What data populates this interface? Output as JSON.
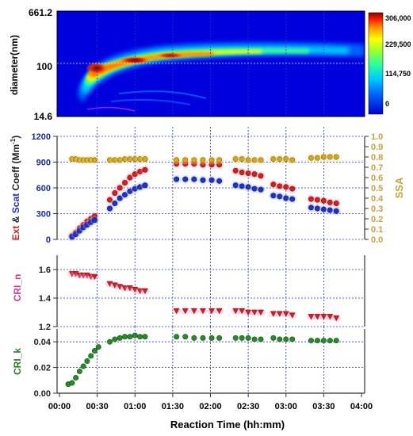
{
  "chart_data": [
    {
      "type": "heatmap",
      "ylabel": "diameter(nm)",
      "y_tick_labels": [
        "661.2",
        "100",
        "14.6"
      ],
      "y_scale": "log",
      "ylim": [
        14.6,
        661.2
      ],
      "colorbar": {
        "tick_labels": [
          "306,000",
          "229,500",
          "114,750",
          "0"
        ],
        "tick_values": [
          306000,
          229500,
          114750,
          0
        ],
        "range": [
          0,
          306000
        ]
      }
    },
    {
      "type": "scatter",
      "ylabel_parts": [
        "Ext",
        " & ",
        "Scat",
        " Coeff (Mm",
        "-1",
        ")"
      ],
      "y2label": "SSA",
      "ylim": [
        0,
        1200
      ],
      "y_ticks": [
        0,
        300,
        600,
        900,
        1200
      ],
      "y2lim": [
        0,
        1.0
      ],
      "y2_tick_labels": [
        "0.0",
        "0.1",
        "0.2",
        "0.3",
        "0.4",
        "0.5",
        "0.6",
        "0.7",
        "0.8",
        "0.9",
        "1.0"
      ],
      "series": [
        {
          "name": "Ext",
          "x": [
            "00:10",
            "00:13",
            "00:16",
            "00:19",
            "00:22",
            "00:25",
            "00:28",
            "00:40",
            "00:44",
            "00:48",
            "00:52",
            "00:56",
            "01:00",
            "01:04",
            "01:08",
            "01:33",
            "01:40",
            "01:47",
            "01:54",
            "02:01",
            "02:07",
            "02:20",
            "02:25",
            "02:30",
            "02:35",
            "02:40",
            "02:50",
            "02:55",
            "03:00",
            "03:05",
            "03:20",
            "03:25",
            "03:30",
            "03:35",
            "03:40"
          ],
          "values": [
            40,
            80,
            130,
            170,
            210,
            240,
            270,
            460,
            540,
            600,
            660,
            720,
            760,
            790,
            810,
            880,
            880,
            880,
            870,
            870,
            870,
            800,
            780,
            770,
            760,
            740,
            640,
            620,
            610,
            590,
            470,
            460,
            450,
            430,
            420
          ]
        },
        {
          "name": "Scat",
          "x": [
            "00:10",
            "00:13",
            "00:16",
            "00:19",
            "00:22",
            "00:25",
            "00:28",
            "00:40",
            "00:44",
            "00:48",
            "00:52",
            "00:56",
            "01:00",
            "01:04",
            "01:08",
            "01:33",
            "01:40",
            "01:47",
            "01:54",
            "02:01",
            "02:07",
            "02:20",
            "02:25",
            "02:30",
            "02:35",
            "02:40",
            "02:50",
            "02:55",
            "03:00",
            "03:05",
            "03:20",
            "03:25",
            "03:30",
            "03:35",
            "03:40"
          ],
          "values": [
            30,
            60,
            100,
            140,
            170,
            200,
            225,
            360,
            420,
            480,
            520,
            560,
            590,
            610,
            630,
            700,
            700,
            700,
            690,
            690,
            680,
            630,
            620,
            610,
            590,
            580,
            510,
            500,
            480,
            470,
            370,
            360,
            350,
            340,
            330
          ]
        },
        {
          "name": "SSA",
          "axis": "right",
          "x": [
            "00:10",
            "00:13",
            "00:16",
            "00:19",
            "00:22",
            "00:25",
            "00:28",
            "00:40",
            "00:44",
            "00:48",
            "00:52",
            "00:56",
            "01:00",
            "01:04",
            "01:08",
            "01:33",
            "01:40",
            "01:47",
            "01:54",
            "02:01",
            "02:07",
            "02:20",
            "02:25",
            "02:30",
            "02:35",
            "02:40",
            "02:50",
            "02:55",
            "03:00",
            "03:05",
            "03:20",
            "03:25",
            "03:30",
            "03:35",
            "03:40"
          ],
          "values": [
            0.78,
            0.78,
            0.77,
            0.77,
            0.77,
            0.77,
            0.77,
            0.77,
            0.77,
            0.77,
            0.78,
            0.78,
            0.78,
            0.78,
            0.78,
            0.77,
            0.77,
            0.77,
            0.77,
            0.77,
            0.77,
            0.78,
            0.78,
            0.77,
            0.77,
            0.77,
            0.78,
            0.78,
            0.78,
            0.77,
            0.79,
            0.79,
            0.8,
            0.8,
            0.8
          ]
        }
      ]
    },
    {
      "type": "scatter",
      "ylabel": "CRI_n",
      "ylim": [
        1.2,
        1.7
      ],
      "y_tick_labels": [
        "1.2",
        "1.4",
        "1.6"
      ],
      "y_ticks": [
        1.2,
        1.4,
        1.6
      ],
      "series": [
        {
          "name": "CRI_n",
          "x": [
            "00:10",
            "00:13",
            "00:16",
            "00:19",
            "00:22",
            "00:25",
            "00:28",
            "00:40",
            "00:44",
            "00:48",
            "00:52",
            "00:56",
            "01:00",
            "01:04",
            "01:08",
            "01:33",
            "01:40",
            "01:47",
            "01:54",
            "02:01",
            "02:07",
            "02:20",
            "02:25",
            "02:30",
            "02:35",
            "02:40",
            "02:50",
            "02:55",
            "03:00",
            "03:05",
            "03:20",
            "03:25",
            "03:30",
            "03:35",
            "03:40"
          ],
          "values": [
            1.57,
            1.57,
            1.56,
            1.56,
            1.56,
            1.55,
            1.55,
            1.5,
            1.49,
            1.48,
            1.47,
            1.47,
            1.46,
            1.45,
            1.45,
            1.31,
            1.31,
            1.31,
            1.31,
            1.31,
            1.31,
            1.31,
            1.31,
            1.3,
            1.3,
            1.3,
            1.29,
            1.29,
            1.29,
            1.28,
            1.27,
            1.27,
            1.27,
            1.27,
            1.26
          ]
        }
      ]
    },
    {
      "type": "scatter",
      "ylabel": "CRI_k",
      "xlabel": "Reaction Time (hh:mm)",
      "ylim": [
        0,
        0.05
      ],
      "y_tick_labels": [
        "0.00",
        "0.02",
        "0.04"
      ],
      "y_ticks": [
        0,
        0.02,
        0.04
      ],
      "x_tick_labels": [
        "00:00",
        "00:30",
        "01:00",
        "01:30",
        "02:00",
        "02:30",
        "03:00",
        "03:30",
        "04:00"
      ],
      "series": [
        {
          "name": "CRI_k",
          "x": [
            "00:07",
            "00:10",
            "00:13",
            "00:16",
            "00:19",
            "00:22",
            "00:25",
            "00:28",
            "00:31",
            "00:40",
            "00:44",
            "00:48",
            "00:52",
            "00:56",
            "01:00",
            "01:04",
            "01:08",
            "01:33",
            "01:40",
            "01:47",
            "01:54",
            "02:01",
            "02:07",
            "02:20",
            "02:25",
            "02:30",
            "02:35",
            "02:40",
            "02:50",
            "02:55",
            "03:00",
            "03:05",
            "03:20",
            "03:25",
            "03:30",
            "03:35",
            "03:40"
          ],
          "values": [
            0.007,
            0.008,
            0.012,
            0.017,
            0.021,
            0.025,
            0.029,
            0.033,
            0.036,
            0.04,
            0.042,
            0.043,
            0.044,
            0.044,
            0.045,
            0.044,
            0.044,
            0.044,
            0.044,
            0.043,
            0.043,
            0.043,
            0.043,
            0.043,
            0.043,
            0.043,
            0.042,
            0.042,
            0.043,
            0.042,
            0.042,
            0.042,
            0.041,
            0.041,
            0.041,
            0.041,
            0.041
          ]
        }
      ]
    }
  ],
  "colors": {
    "ext": "#cc2222",
    "scat": "#2233bb",
    "ssa": "#ccaa22",
    "crin": "#cc2222",
    "crik": "#2a8a2a",
    "ssa_label": "#c8a040",
    "crin_label": "#c73aa0",
    "crik_label": "#2a7a2a",
    "coeff_axis": "#1a2a9a",
    "grid": "#2233cc"
  }
}
